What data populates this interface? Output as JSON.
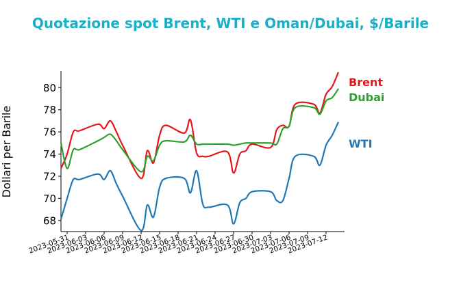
{
  "chart_data": {
    "type": "line",
    "title": "Quotazione spot Brent, WTI e Oman/Dubai, $/Barile",
    "ylabel": "Dollari per Barile",
    "xlabel": "",
    "ylim": [
      67,
      81.5
    ],
    "xlim": [
      "2023-05-30",
      "2023-07-15"
    ],
    "y_ticks": [
      68,
      70,
      72,
      74,
      76,
      78,
      80
    ],
    "x_ticks": [
      "2023-05-31",
      "2023-06-03",
      "2023-06-06",
      "2023-06-09",
      "2023-06-12",
      "2023-06-15",
      "2023-06-18",
      "2023-06-21",
      "2023-06-24",
      "2023-06-27",
      "2023-06-30",
      "2023-07-03",
      "2023-07-06",
      "2023-07-09",
      "2023-07-12"
    ],
    "grid": false,
    "legend": "inline-right",
    "x": [
      "2023-05-30",
      "2023-05-31",
      "2023-06-01",
      "2023-06-02",
      "2023-06-05",
      "2023-06-06",
      "2023-06-07",
      "2023-06-08",
      "2023-06-09",
      "2023-06-12",
      "2023-06-13",
      "2023-06-14",
      "2023-06-15",
      "2023-06-16",
      "2023-06-19",
      "2023-06-20",
      "2023-06-21",
      "2023-06-22",
      "2023-06-23",
      "2023-06-26",
      "2023-06-27",
      "2023-06-28",
      "2023-06-29",
      "2023-06-30",
      "2023-07-03",
      "2023-07-04",
      "2023-07-05",
      "2023-07-06",
      "2023-07-07",
      "2023-07-10",
      "2023-07-11",
      "2023-07-12",
      "2023-07-13",
      "2023-07-14"
    ],
    "series": [
      {
        "name": "Brent",
        "color": "#e8141b",
        "values": [
          72.7,
          74.0,
          76.0,
          76.1,
          76.7,
          76.3,
          77.0,
          76.0,
          74.8,
          71.8,
          74.3,
          73.2,
          75.7,
          76.6,
          75.9,
          77.1,
          74.1,
          73.8,
          73.8,
          74.2,
          72.3,
          74.0,
          74.3,
          74.9,
          74.6,
          76.2,
          76.6,
          76.5,
          78.5,
          78.5,
          77.7,
          79.4,
          80.1,
          81.4
        ]
      },
      {
        "name": "Dubai",
        "color": "#2ca02c",
        "values": [
          75.0,
          72.7,
          74.4,
          74.4,
          75.2,
          75.5,
          75.8,
          75.2,
          74.4,
          72.4,
          73.8,
          73.4,
          74.8,
          75.2,
          75.1,
          75.7,
          74.9,
          74.9,
          74.9,
          74.9,
          74.8,
          74.9,
          75.0,
          75.0,
          75.0,
          74.9,
          76.3,
          76.5,
          78.2,
          78.2,
          77.6,
          78.8,
          79.1,
          79.9
        ]
      },
      {
        "name": "WTI",
        "color": "#1f77b4",
        "values": [
          68.1,
          70.0,
          71.7,
          71.7,
          72.2,
          71.7,
          72.5,
          71.3,
          70.2,
          67.1,
          69.4,
          68.3,
          71.0,
          71.8,
          71.8,
          70.5,
          72.5,
          69.5,
          69.2,
          69.4,
          67.7,
          69.6,
          70.0,
          70.6,
          70.6,
          69.8,
          69.8,
          71.8,
          73.8,
          73.8,
          73.0,
          74.8,
          75.7,
          76.9
        ]
      }
    ]
  }
}
